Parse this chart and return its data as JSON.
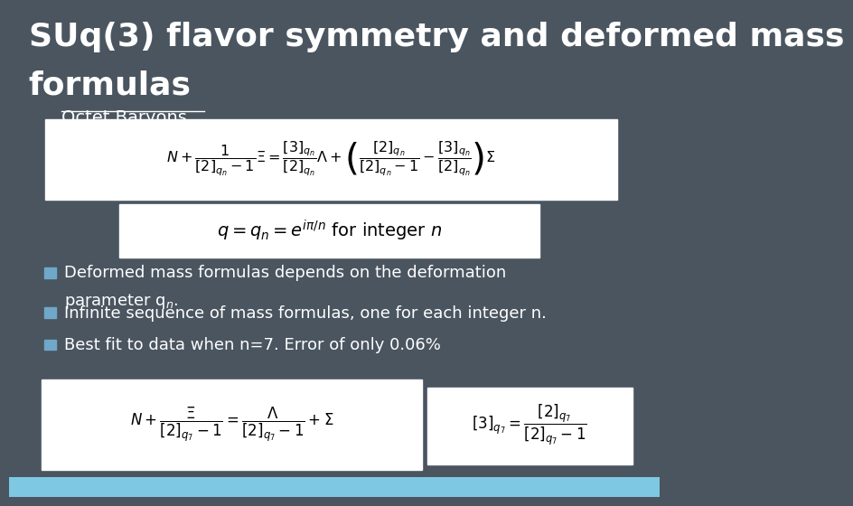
{
  "bg_color": "#4a5560",
  "title_line1": "SUq(3) flavor symmetry and deformed mass",
  "title_line2": "formulas",
  "title_color": "#ffffff",
  "title_fontsize": 26,
  "subtitle": "Octet Baryons",
  "subtitle_color": "#ffffff",
  "subtitle_fontsize": 14,
  "bullet_color": "#6fa8c8",
  "bullets_line1": [
    "Deformed mass formulas depends on the deformation",
    "Infinite sequence of mass formulas, one for each integer n.",
    "Best fit to data when n=7. Error of only 0.06%"
  ],
  "bullets_line2": [
    "parameter q",
    "",
    ""
  ],
  "bullet_fontsize": 13,
  "bullet_text_color": "#ffffff",
  "bottom_bar_color": "#7ec8e3",
  "bottom_bar_height": 0.04
}
